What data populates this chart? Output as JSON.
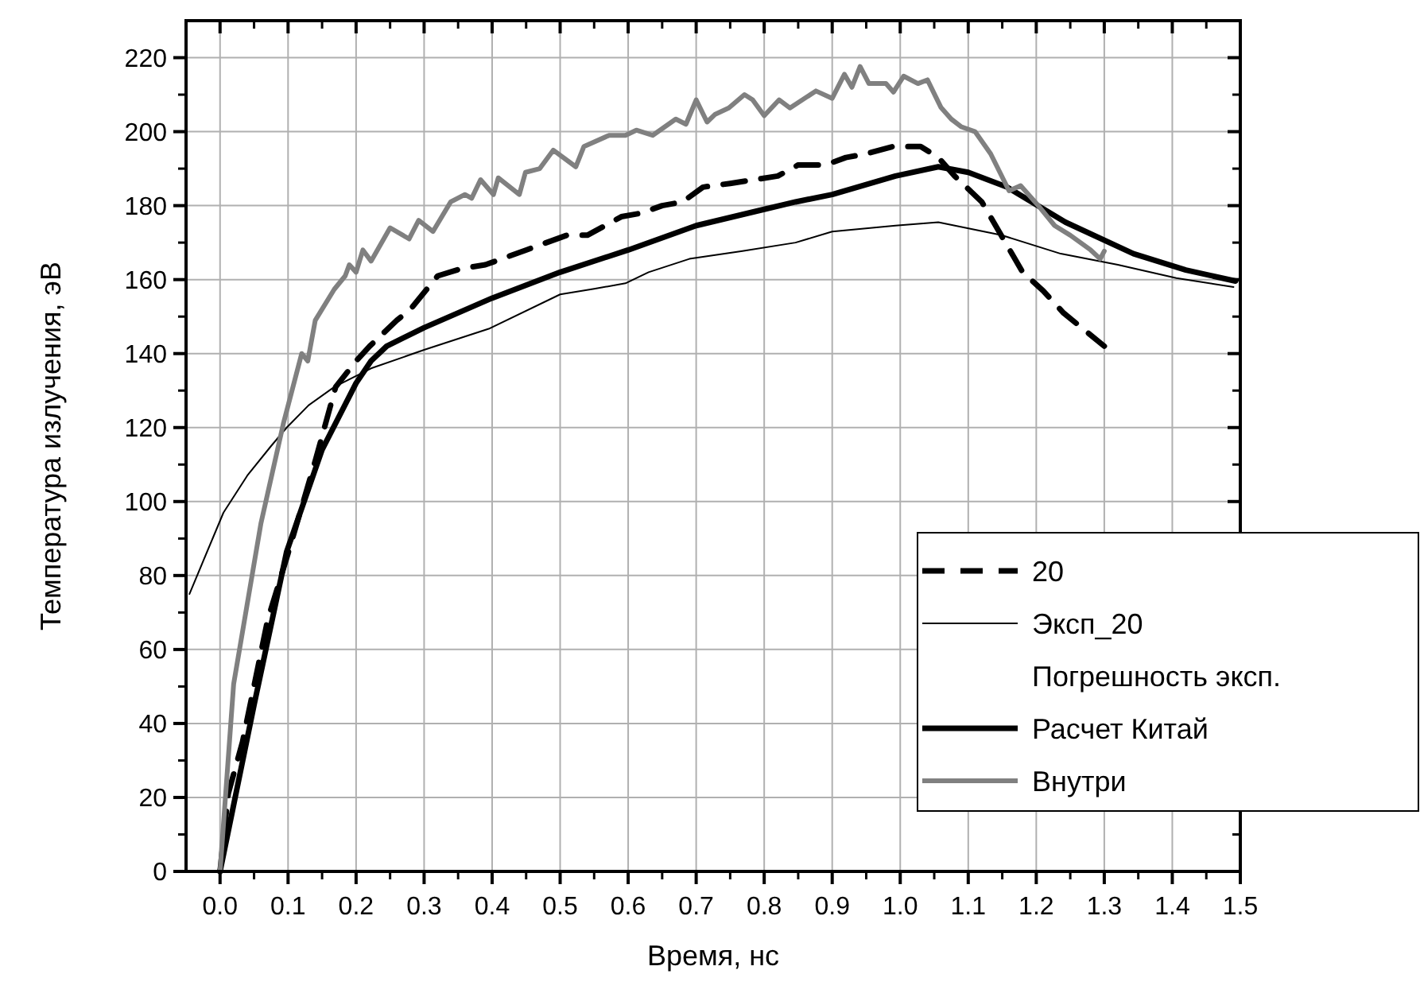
{
  "chart_data": {
    "type": "line",
    "xlabel": "Время, нс",
    "ylabel": "Температура излучения, эВ",
    "xlim": [
      -0.05,
      1.5
    ],
    "ylim": [
      0,
      230
    ],
    "xticks": [
      {
        "value": 0,
        "label": "0.0"
      },
      {
        "value": 0.1,
        "label": "0.1"
      },
      {
        "value": 0.2,
        "label": "0.2"
      },
      {
        "value": 0.3,
        "label": "0.3"
      },
      {
        "value": 0.4,
        "label": "0.4"
      },
      {
        "value": 0.5,
        "label": "0.5"
      },
      {
        "value": 0.6,
        "label": "0.6"
      },
      {
        "value": 0.7,
        "label": "0.7"
      },
      {
        "value": 0.8,
        "label": "0.8"
      },
      {
        "value": 0.9,
        "label": "0.9"
      },
      {
        "value": 1,
        "label": "1.0"
      },
      {
        "value": 1.1,
        "label": "1.1"
      },
      {
        "value": 1.2,
        "label": "1.2"
      },
      {
        "value": 1.3,
        "label": "1.3"
      },
      {
        "value": 1.4,
        "label": "1.4"
      },
      {
        "value": 1.5,
        "label": "1.5"
      }
    ],
    "yticks": [
      0,
      20,
      40,
      60,
      80,
      100,
      120,
      140,
      160,
      180,
      200,
      220
    ],
    "grid": true,
    "legend": "right",
    "marker": "none",
    "series": [
      {
        "name": "20",
        "color": "#000000",
        "line_style": "dashed",
        "x": [
          0,
          0.012,
          0.033,
          0.07,
          0.1,
          0.14,
          0.17,
          0.2,
          0.22,
          0.26,
          0.28,
          0.32,
          0.355,
          0.39,
          0.42,
          0.45,
          0.48,
          0.51,
          0.54,
          0.59,
          0.62,
          0.65,
          0.68,
          0.71,
          0.75,
          0.82,
          0.85,
          0.89,
          0.92,
          0.95,
          0.99,
          1.03,
          1.056,
          1.08,
          1.12,
          1.18,
          1.21,
          1.24,
          1.3
        ],
        "values": [
          0,
          21,
          35,
          68,
          86,
          111,
          131,
          138,
          142,
          149,
          152,
          161,
          163,
          164,
          166,
          168,
          170,
          172,
          172,
          177,
          178,
          180,
          181,
          185,
          186,
          188,
          191,
          191,
          193,
          194,
          196,
          196,
          193,
          188,
          181,
          162,
          157,
          151,
          142
        ]
      },
      {
        "name": "Эксп_20",
        "color": "#000000",
        "line_style": "solid",
        "x": [
          -0.045,
          0.005,
          0.04,
          0.075,
          0.098,
          0.13,
          0.168,
          0.222,
          0.3,
          0.395,
          0.5,
          0.55,
          0.596,
          0.63,
          0.69,
          0.768,
          0.846,
          0.9,
          0.993,
          1.056,
          1.149,
          1.236,
          1.32,
          1.406,
          1.49
        ],
        "values": [
          75,
          97,
          107,
          115,
          120,
          126,
          131,
          136,
          141,
          146.7,
          156,
          157.5,
          159,
          162,
          165.6,
          167.7,
          170,
          173,
          174.6,
          175.5,
          172,
          167,
          164,
          160.4,
          158
        ]
      },
      {
        "name": "Погрешность эксп."
      },
      {
        "name": "Расчет Китай",
        "color": "#000000",
        "line_style": "solid",
        "x": [
          0,
          0.05,
          0.098,
          0.15,
          0.2,
          0.222,
          0.245,
          0.3,
          0.4,
          0.5,
          0.6,
          0.7,
          0.8,
          0.846,
          0.9,
          0.993,
          1.056,
          1.1,
          1.157,
          1.243,
          1.343,
          1.42,
          1.493
        ],
        "values": [
          0,
          45,
          86.5,
          114,
          132,
          138,
          142,
          147,
          155,
          162,
          168,
          174.6,
          179,
          181,
          183,
          188,
          190.5,
          189,
          185,
          175.5,
          167,
          162.6,
          159.6
        ]
      },
      {
        "name": "Внутри",
        "color": "#808080",
        "line_style": "solid",
        "x": [
          0,
          0.02,
          0.06,
          0.093,
          0.12,
          0.129,
          0.14,
          0.168,
          0.184,
          0.19,
          0.2,
          0.21,
          0.222,
          0.25,
          0.278,
          0.292,
          0.313,
          0.339,
          0.36,
          0.37,
          0.383,
          0.402,
          0.409,
          0.44,
          0.449,
          0.47,
          0.49,
          0.523,
          0.535,
          0.572,
          0.596,
          0.612,
          0.636,
          0.67,
          0.685,
          0.7,
          0.716,
          0.728,
          0.748,
          0.771,
          0.783,
          0.8,
          0.822,
          0.838,
          0.876,
          0.9,
          0.918,
          0.929,
          0.941,
          0.954,
          0.979,
          0.99,
          1.005,
          1.026,
          1.04,
          1.06,
          1.075,
          1.09,
          1.11,
          1.133,
          1.16,
          1.177,
          1.203,
          1.227,
          1.25,
          1.28,
          1.294,
          1.3
        ],
        "values": [
          0,
          50.7,
          94,
          121,
          140,
          138,
          149,
          157.4,
          161,
          164,
          162,
          168,
          165,
          174,
          171,
          176,
          173,
          181,
          183,
          182,
          187,
          183,
          187.5,
          183,
          189,
          190,
          195,
          190.5,
          196,
          199,
          199,
          200.4,
          199,
          203.4,
          202,
          208.6,
          202.6,
          204.7,
          206.4,
          210,
          208.6,
          204.3,
          208.6,
          206.4,
          211,
          209,
          215.5,
          212,
          217.6,
          213,
          213,
          210.7,
          215,
          213,
          214,
          206.5,
          203.4,
          201.3,
          200,
          194,
          184,
          185.4,
          180,
          174.6,
          172,
          168,
          165.6,
          167.7
        ]
      }
    ]
  }
}
